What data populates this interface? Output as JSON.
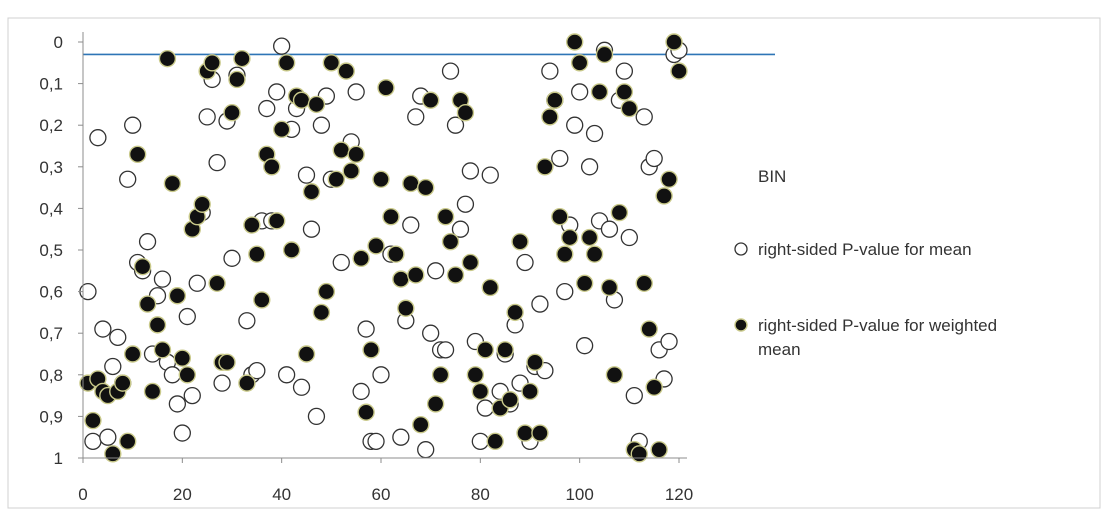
{
  "chart_data": {
    "type": "scatter",
    "xlim": [
      0,
      120
    ],
    "ylim": [
      0,
      1
    ],
    "y_reversed": true,
    "xticks": [
      "0",
      "20",
      "40",
      "60",
      "80",
      "100",
      "120"
    ],
    "yticks": [
      "0",
      "0,1",
      "0,2",
      "0,3",
      "0,4",
      "0,5",
      "0,6",
      "0,7",
      "0,8",
      "0,9",
      "1"
    ],
    "reference_line": {
      "y": 0.03,
      "color": "#2e75b6"
    },
    "legend": {
      "title": "BIN",
      "position": "right"
    },
    "series": [
      {
        "name": "right-sided P-value for mean",
        "marker": "open-circle",
        "points": [
          [
            1,
            0.6
          ],
          [
            2,
            0.96
          ],
          [
            3,
            0.23
          ],
          [
            4,
            0.69
          ],
          [
            5,
            0.95
          ],
          [
            6,
            0.78
          ],
          [
            7,
            0.71
          ],
          [
            8,
            0.82
          ],
          [
            9,
            0.33
          ],
          [
            10,
            0.2
          ],
          [
            11,
            0.53
          ],
          [
            12,
            0.55
          ],
          [
            13,
            0.48
          ],
          [
            14,
            0.75
          ],
          [
            15,
            0.61
          ],
          [
            16,
            0.57
          ],
          [
            17,
            0.77
          ],
          [
            18,
            0.8
          ],
          [
            19,
            0.87
          ],
          [
            20,
            0.94
          ],
          [
            21,
            0.66
          ],
          [
            22,
            0.85
          ],
          [
            23,
            0.58
          ],
          [
            24,
            0.41
          ],
          [
            25,
            0.18
          ],
          [
            26,
            0.09
          ],
          [
            27,
            0.29
          ],
          [
            28,
            0.82
          ],
          [
            29,
            0.19
          ],
          [
            30,
            0.52
          ],
          [
            31,
            0.08
          ],
          [
            33,
            0.67
          ],
          [
            34,
            0.8
          ],
          [
            35,
            0.79
          ],
          [
            36,
            0.43
          ],
          [
            37,
            0.16
          ],
          [
            38,
            0.43
          ],
          [
            39,
            0.12
          ],
          [
            40,
            0.01
          ],
          [
            41,
            0.8
          ],
          [
            42,
            0.21
          ],
          [
            43,
            0.16
          ],
          [
            44,
            0.83
          ],
          [
            45,
            0.32
          ],
          [
            46,
            0.45
          ],
          [
            47,
            0.9
          ],
          [
            48,
            0.2
          ],
          [
            49,
            0.13
          ],
          [
            50,
            0.33
          ],
          [
            52,
            0.53
          ],
          [
            54,
            0.24
          ],
          [
            55,
            0.12
          ],
          [
            56,
            0.84
          ],
          [
            57,
            0.69
          ],
          [
            58,
            0.96
          ],
          [
            59,
            0.96
          ],
          [
            60,
            0.8
          ],
          [
            62,
            0.51
          ],
          [
            64,
            0.95
          ],
          [
            65,
            0.67
          ],
          [
            66,
            0.44
          ],
          [
            67,
            0.18
          ],
          [
            68,
            0.13
          ],
          [
            69,
            0.98
          ],
          [
            70,
            0.7
          ],
          [
            71,
            0.55
          ],
          [
            72,
            0.74
          ],
          [
            73,
            0.74
          ],
          [
            74,
            0.07
          ],
          [
            75,
            0.2
          ],
          [
            76,
            0.45
          ],
          [
            77,
            0.39
          ],
          [
            78,
            0.31
          ],
          [
            79,
            0.72
          ],
          [
            80,
            0.96
          ],
          [
            81,
            0.88
          ],
          [
            82,
            0.32
          ],
          [
            84,
            0.84
          ],
          [
            85,
            0.75
          ],
          [
            86,
            0.87
          ],
          [
            87,
            0.68
          ],
          [
            88,
            0.82
          ],
          [
            89,
            0.53
          ],
          [
            90,
            0.96
          ],
          [
            91,
            0.78
          ],
          [
            92,
            0.63
          ],
          [
            93,
            0.79
          ],
          [
            94,
            0.07
          ],
          [
            95,
            0.14
          ],
          [
            96,
            0.28
          ],
          [
            97,
            0.6
          ],
          [
            98,
            0.44
          ],
          [
            99,
            0.2
          ],
          [
            100,
            0.12
          ],
          [
            101,
            0.73
          ],
          [
            102,
            0.3
          ],
          [
            103,
            0.22
          ],
          [
            104,
            0.43
          ],
          [
            105,
            0.02
          ],
          [
            106,
            0.45
          ],
          [
            107,
            0.62
          ],
          [
            108,
            0.14
          ],
          [
            109,
            0.07
          ],
          [
            110,
            0.47
          ],
          [
            111,
            0.85
          ],
          [
            112,
            0.96
          ],
          [
            113,
            0.18
          ],
          [
            114,
            0.3
          ],
          [
            115,
            0.28
          ],
          [
            116,
            0.74
          ],
          [
            117,
            0.81
          ],
          [
            118,
            0.72
          ],
          [
            119,
            0.03
          ],
          [
            120,
            0.02
          ]
        ]
      },
      {
        "name": "right-sided P-value for weighted mean",
        "marker": "filled-circle",
        "points": [
          [
            1,
            0.82
          ],
          [
            2,
            0.91
          ],
          [
            3,
            0.81
          ],
          [
            4,
            0.84
          ],
          [
            5,
            0.85
          ],
          [
            6,
            0.99
          ],
          [
            7,
            0.84
          ],
          [
            8,
            0.82
          ],
          [
            9,
            0.96
          ],
          [
            10,
            0.75
          ],
          [
            11,
            0.27
          ],
          [
            12,
            0.54
          ],
          [
            13,
            0.63
          ],
          [
            14,
            0.84
          ],
          [
            15,
            0.68
          ],
          [
            16,
            0.74
          ],
          [
            17,
            0.04
          ],
          [
            18,
            0.34
          ],
          [
            19,
            0.61
          ],
          [
            20,
            0.76
          ],
          [
            21,
            0.8
          ],
          [
            22,
            0.45
          ],
          [
            23,
            0.42
          ],
          [
            24,
            0.39
          ],
          [
            25,
            0.07
          ],
          [
            26,
            0.05
          ],
          [
            27,
            0.58
          ],
          [
            28,
            0.77
          ],
          [
            29,
            0.77
          ],
          [
            30,
            0.17
          ],
          [
            31,
            0.09
          ],
          [
            32,
            0.04
          ],
          [
            33,
            0.82
          ],
          [
            34,
            0.44
          ],
          [
            35,
            0.51
          ],
          [
            36,
            0.62
          ],
          [
            37,
            0.27
          ],
          [
            38,
            0.3
          ],
          [
            39,
            0.43
          ],
          [
            40,
            0.21
          ],
          [
            41,
            0.05
          ],
          [
            42,
            0.5
          ],
          [
            43,
            0.13
          ],
          [
            44,
            0.14
          ],
          [
            45,
            0.75
          ],
          [
            46,
            0.36
          ],
          [
            47,
            0.15
          ],
          [
            48,
            0.65
          ],
          [
            49,
            0.6
          ],
          [
            50,
            0.05
          ],
          [
            51,
            0.33
          ],
          [
            52,
            0.26
          ],
          [
            53,
            0.07
          ],
          [
            54,
            0.31
          ],
          [
            55,
            0.27
          ],
          [
            56,
            0.52
          ],
          [
            57,
            0.89
          ],
          [
            58,
            0.74
          ],
          [
            59,
            0.49
          ],
          [
            60,
            0.33
          ],
          [
            61,
            0.11
          ],
          [
            62,
            0.42
          ],
          [
            63,
            0.51
          ],
          [
            64,
            0.57
          ],
          [
            65,
            0.64
          ],
          [
            66,
            0.34
          ],
          [
            67,
            0.56
          ],
          [
            68,
            0.92
          ],
          [
            69,
            0.35
          ],
          [
            70,
            0.14
          ],
          [
            71,
            0.87
          ],
          [
            72,
            0.8
          ],
          [
            73,
            0.42
          ],
          [
            74,
            0.48
          ],
          [
            75,
            0.56
          ],
          [
            76,
            0.14
          ],
          [
            77,
            0.17
          ],
          [
            78,
            0.53
          ],
          [
            79,
            0.8
          ],
          [
            80,
            0.84
          ],
          [
            81,
            0.74
          ],
          [
            82,
            0.59
          ],
          [
            83,
            0.96
          ],
          [
            84,
            0.88
          ],
          [
            85,
            0.74
          ],
          [
            86,
            0.86
          ],
          [
            87,
            0.65
          ],
          [
            88,
            0.48
          ],
          [
            89,
            0.94
          ],
          [
            90,
            0.84
          ],
          [
            91,
            0.77
          ],
          [
            92,
            0.94
          ],
          [
            93,
            0.3
          ],
          [
            94,
            0.18
          ],
          [
            95,
            0.14
          ],
          [
            96,
            0.42
          ],
          [
            97,
            0.51
          ],
          [
            98,
            0.47
          ],
          [
            99,
            0.0
          ],
          [
            100,
            0.05
          ],
          [
            101,
            0.58
          ],
          [
            102,
            0.47
          ],
          [
            103,
            0.51
          ],
          [
            104,
            0.12
          ],
          [
            105,
            0.03
          ],
          [
            106,
            0.59
          ],
          [
            107,
            0.8
          ],
          [
            108,
            0.41
          ],
          [
            109,
            0.12
          ],
          [
            110,
            0.16
          ],
          [
            111,
            0.98
          ],
          [
            112,
            0.99
          ],
          [
            113,
            0.58
          ],
          [
            114,
            0.69
          ],
          [
            115,
            0.83
          ],
          [
            116,
            0.98
          ],
          [
            117,
            0.37
          ],
          [
            118,
            0.33
          ],
          [
            119,
            0.0
          ],
          [
            120,
            0.07
          ]
        ]
      }
    ]
  }
}
